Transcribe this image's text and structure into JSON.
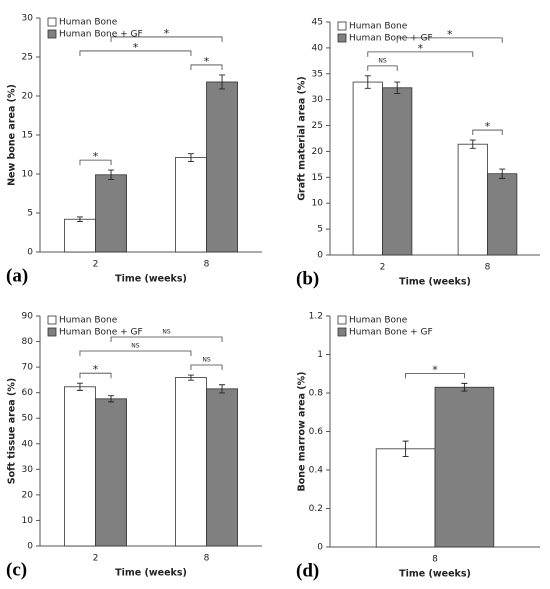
{
  "chart_data": [
    {
      "type": "bar",
      "panel_label": "(a)",
      "y_label": "New bone area (%)",
      "x_label": "Time (weeks)",
      "categories": [
        "2",
        "8"
      ],
      "series": [
        {
          "name": "Human Bone",
          "color": "#ffffff",
          "values": [
            4.2,
            12.1
          ],
          "errors": [
            0.3,
            0.5
          ]
        },
        {
          "name": "Human Bone + GF",
          "color": "#808080",
          "values": [
            9.9,
            21.8
          ],
          "errors": [
            0.6,
            0.9
          ]
        }
      ],
      "ylim": [
        0,
        30
      ],
      "yticks": [
        0,
        5,
        10,
        15,
        20,
        25,
        30
      ],
      "legend": "upper left",
      "annotations": [
        {
          "label": "*",
          "from": [
            "Human Bone",
            "2"
          ],
          "to": [
            "Human Bone + GF",
            "2"
          ]
        },
        {
          "label": "*",
          "from": [
            "Human Bone",
            "8"
          ],
          "to": [
            "Human Bone + GF",
            "8"
          ]
        },
        {
          "label": "*",
          "from": [
            "Human Bone",
            "2"
          ],
          "to": [
            "Human Bone",
            "8"
          ]
        },
        {
          "label": "*",
          "from": [
            "Human Bone + GF",
            "2"
          ],
          "to": [
            "Human Bone + GF",
            "8"
          ]
        }
      ]
    },
    {
      "type": "bar",
      "panel_label": "(b)",
      "y_label": "Graft material area (%)",
      "x_label": "Time (weeks)",
      "categories": [
        "2",
        "8"
      ],
      "series": [
        {
          "name": "Human Bone",
          "color": "#ffffff",
          "values": [
            33.4,
            21.4
          ],
          "errors": [
            1.2,
            0.8
          ]
        },
        {
          "name": "Human Bone + GF",
          "color": "#808080",
          "values": [
            32.3,
            15.7
          ],
          "errors": [
            1.1,
            0.9
          ]
        }
      ],
      "ylim": [
        0,
        45
      ],
      "yticks": [
        0,
        5,
        10,
        15,
        20,
        25,
        30,
        35,
        40,
        45
      ],
      "legend": "upper left",
      "annotations": [
        {
          "label": "NS",
          "from": [
            "Human Bone",
            "2"
          ],
          "to": [
            "Human Bone + GF",
            "2"
          ]
        },
        {
          "label": "*",
          "from": [
            "Human Bone",
            "8"
          ],
          "to": [
            "Human Bone + GF",
            "8"
          ]
        },
        {
          "label": "*",
          "from": [
            "Human Bone",
            "2"
          ],
          "to": [
            "Human Bone",
            "8"
          ]
        },
        {
          "label": "*",
          "from": [
            "Human Bone + GF",
            "2"
          ],
          "to": [
            "Human Bone + GF",
            "8"
          ]
        }
      ]
    },
    {
      "type": "bar",
      "panel_label": "(c)",
      "y_label": "Soft tissue area (%)",
      "x_label": "Time (weeks)",
      "categories": [
        "2",
        "8"
      ],
      "series": [
        {
          "name": "Human Bone",
          "color": "#ffffff",
          "values": [
            62.3,
            65.9
          ],
          "errors": [
            1.4,
            1.0
          ]
        },
        {
          "name": "Human Bone + GF",
          "color": "#808080",
          "values": [
            57.6,
            61.5
          ],
          "errors": [
            1.2,
            1.6
          ]
        }
      ],
      "ylim": [
        0,
        90
      ],
      "yticks": [
        0,
        10,
        20,
        30,
        40,
        50,
        60,
        70,
        80,
        90
      ],
      "legend": "upper left",
      "annotations": [
        {
          "label": "*",
          "from": [
            "Human Bone",
            "2"
          ],
          "to": [
            "Human Bone + GF",
            "2"
          ]
        },
        {
          "label": "NS",
          "from": [
            "Human Bone",
            "8"
          ],
          "to": [
            "Human Bone + GF",
            "8"
          ]
        },
        {
          "label": "NS",
          "from": [
            "Human Bone",
            "2"
          ],
          "to": [
            "Human Bone",
            "8"
          ]
        },
        {
          "label": "NS",
          "from": [
            "Human Bone + GF",
            "2"
          ],
          "to": [
            "Human Bone + GF",
            "8"
          ]
        }
      ]
    },
    {
      "type": "bar",
      "panel_label": "(d)",
      "y_label": "Bone marrow area (%)",
      "x_label": "Time (weeks)",
      "categories": [
        "8"
      ],
      "series": [
        {
          "name": "Human Bone",
          "color": "#ffffff",
          "values": [
            0.51
          ],
          "errors": [
            0.04
          ]
        },
        {
          "name": "Human Bone + GF",
          "color": "#808080",
          "values": [
            0.83
          ],
          "errors": [
            0.02
          ]
        }
      ],
      "ylim": [
        0,
        1.2
      ],
      "yticks": [
        0,
        0.2,
        0.4,
        0.6,
        0.8,
        1,
        1.2
      ],
      "legend": "upper left",
      "annotations": [
        {
          "label": "*",
          "from": [
            "Human Bone",
            "8"
          ],
          "to": [
            "Human Bone + GF",
            "8"
          ]
        }
      ]
    }
  ]
}
